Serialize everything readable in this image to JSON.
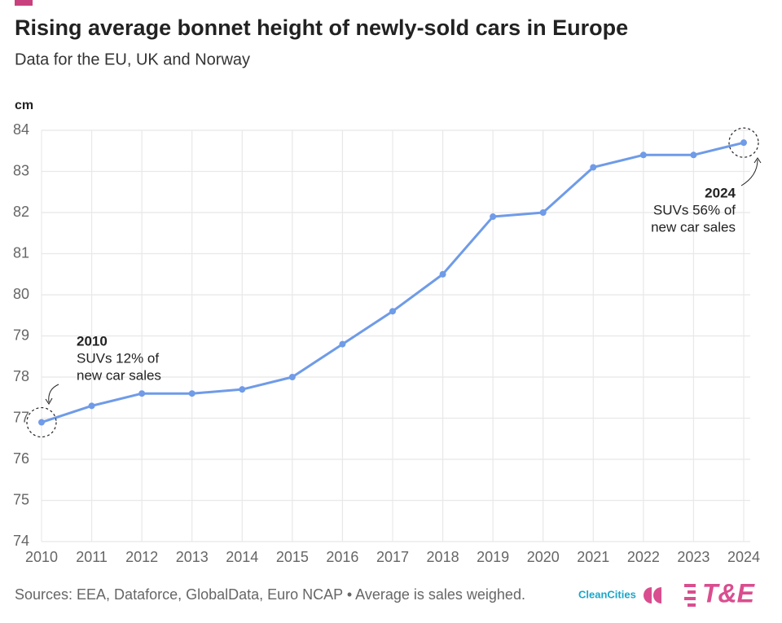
{
  "chart_data": {
    "type": "line",
    "title": "Rising average bonnet height of newly-sold cars in Europe",
    "subtitle": "Data for the EU, UK and Norway",
    "y_label": "cm",
    "x": [
      2010,
      2011,
      2012,
      2013,
      2014,
      2015,
      2016,
      2017,
      2018,
      2019,
      2020,
      2021,
      2022,
      2023,
      2024
    ],
    "series": [
      {
        "name": "Average bonnet height",
        "color": "#6f9be8",
        "values": [
          76.9,
          77.3,
          77.6,
          77.6,
          77.7,
          78.0,
          78.8,
          79.6,
          80.5,
          81.9,
          82.0,
          83.1,
          83.4,
          83.4,
          83.7
        ]
      }
    ],
    "xlim": [
      2010,
      2024
    ],
    "xticks": [
      2010,
      2011,
      2012,
      2013,
      2014,
      2015,
      2016,
      2017,
      2018,
      2019,
      2020,
      2021,
      2022,
      2023,
      2024
    ],
    "ylim": [
      74,
      84
    ],
    "yticks": [
      74,
      75,
      76,
      77,
      78,
      79,
      80,
      81,
      82,
      83,
      84
    ],
    "grid": true,
    "annotations": [
      {
        "title": "2010",
        "lines": [
          "SUVs 12% of",
          "new car sales"
        ]
      },
      {
        "title": "2024",
        "lines": [
          "SUVs 56% of",
          "new car sales"
        ]
      }
    ],
    "source": "Sources: EEA, Dataforce, GlobalData, Euro NCAP • Average is sales weighed.",
    "logos": [
      "CleanCities",
      "T&E"
    ]
  }
}
